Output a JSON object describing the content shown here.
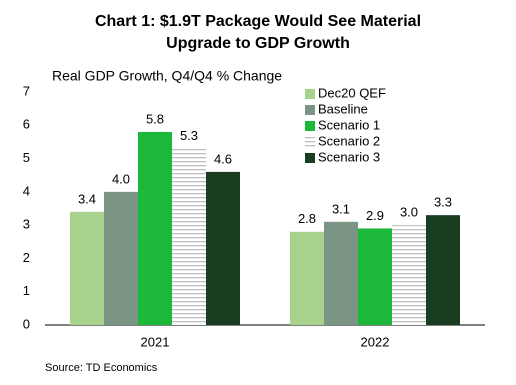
{
  "chart_data": {
    "type": "bar",
    "title": "Chart 1: $1.9T Package Would See Material",
    "subtitle": "Upgrade to GDP Growth",
    "ylabel": "Real GDP Growth, Q4/Q4 % Change",
    "source": "Source: TD Economics",
    "categories": [
      "2021",
      "2022"
    ],
    "series": [
      {
        "name": "Dec20 QEF",
        "color": "#a9d18e",
        "values": [
          3.4,
          2.8
        ],
        "value_labels": [
          "3.4",
          "2.8"
        ]
      },
      {
        "name": "Baseline",
        "color": "#7a9583",
        "values": [
          4.0,
          3.1
        ],
        "value_labels": [
          "4.0",
          "3.1"
        ]
      },
      {
        "name": "Scenario 1",
        "color": "#1cb83a",
        "values": [
          5.8,
          2.9
        ],
        "value_labels": [
          "5.8",
          "2.9"
        ]
      },
      {
        "name": "Scenario 2",
        "color": "#bfbfbf",
        "pattern": "horizontal-lines",
        "values": [
          5.3,
          3.0
        ],
        "value_labels": [
          "5.3",
          "3.0"
        ]
      },
      {
        "name": "Scenario 3",
        "color": "#1a3d22",
        "values": [
          4.6,
          3.3
        ],
        "value_labels": [
          "4.6",
          "3.3"
        ]
      }
    ],
    "ylim": [
      0,
      7
    ],
    "yticks": [
      0,
      1,
      2,
      3,
      4,
      5,
      6,
      7
    ],
    "grid": false,
    "legend": "top-right"
  }
}
